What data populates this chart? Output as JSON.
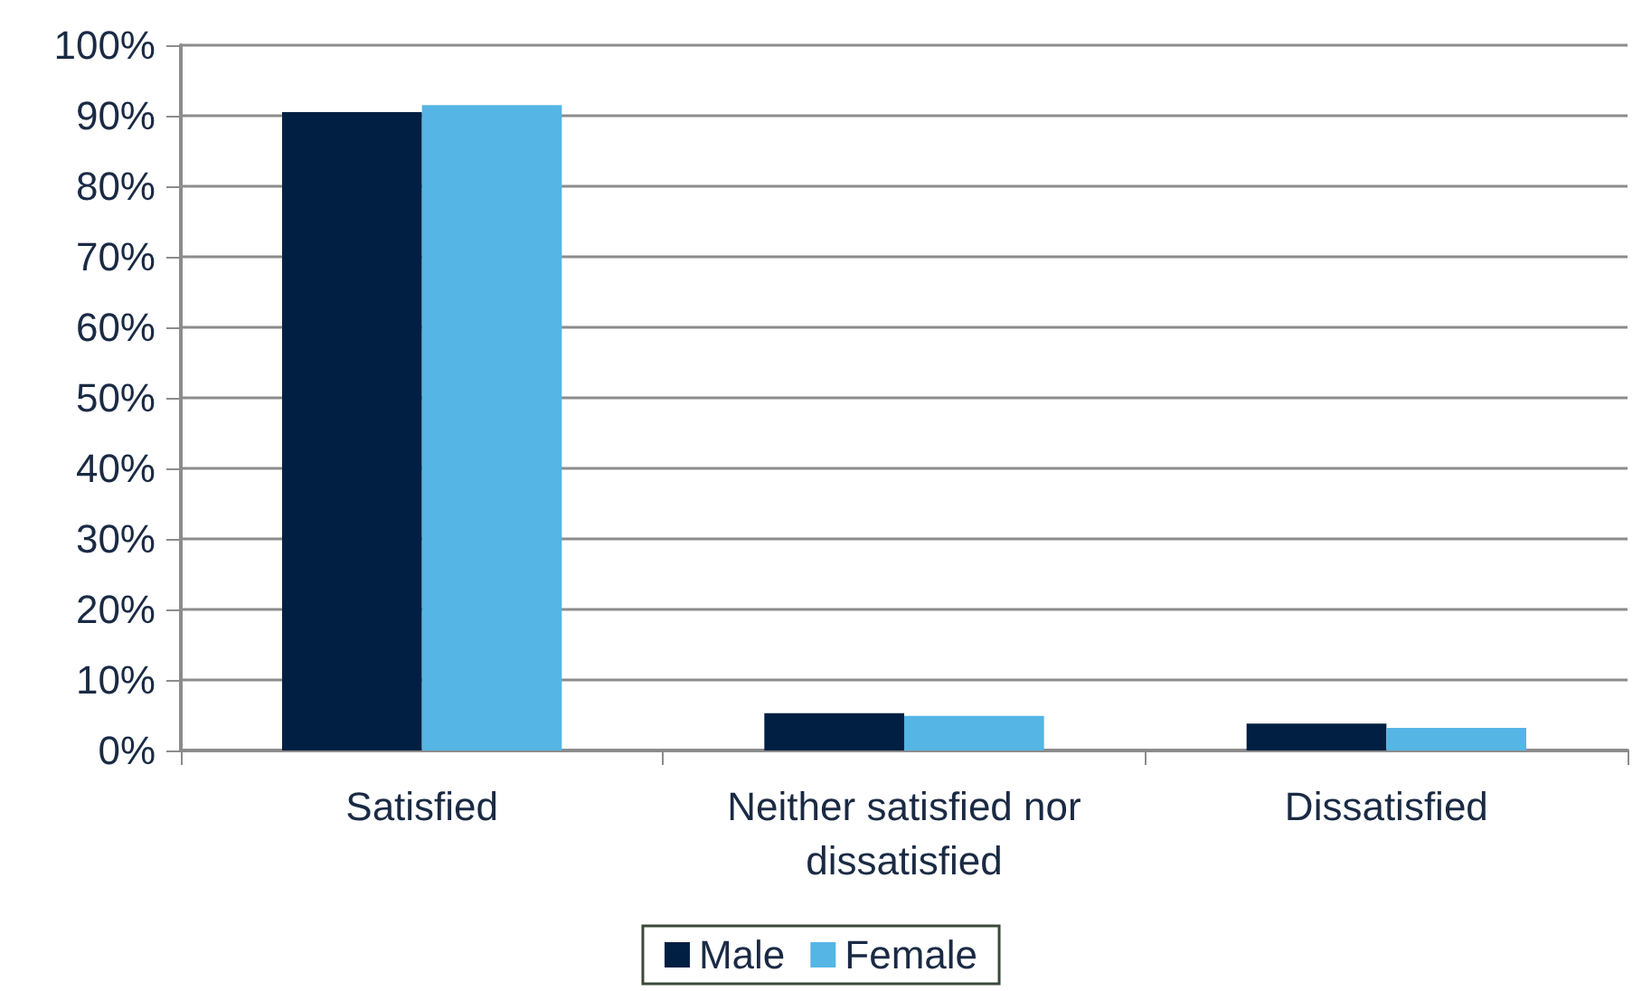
{
  "chart_data": {
    "type": "bar",
    "categories": [
      "Satisfied",
      "Neither satisfied nor\ndissatisfied",
      "Dissatisfied"
    ],
    "series": [
      {
        "name": "Male",
        "color": "#001f42",
        "values": [
          90.5,
          5.3,
          3.8
        ]
      },
      {
        "name": "Female",
        "color": "#55b5e5",
        "values": [
          91.5,
          4.9,
          3.2
        ]
      }
    ],
    "ylim": [
      0,
      100
    ],
    "yticks": [
      {
        "value": 0,
        "label": "0%"
      },
      {
        "value": 10,
        "label": "10%"
      },
      {
        "value": 20,
        "label": "20%"
      },
      {
        "value": 30,
        "label": "30%"
      },
      {
        "value": 40,
        "label": "40%"
      },
      {
        "value": 50,
        "label": "50%"
      },
      {
        "value": 60,
        "label": "60%"
      },
      {
        "value": 70,
        "label": "70%"
      },
      {
        "value": 80,
        "label": "80%"
      },
      {
        "value": 90,
        "label": "90%"
      },
      {
        "value": 100,
        "label": "100%"
      }
    ],
    "grid": "y",
    "legend": "bottom"
  }
}
